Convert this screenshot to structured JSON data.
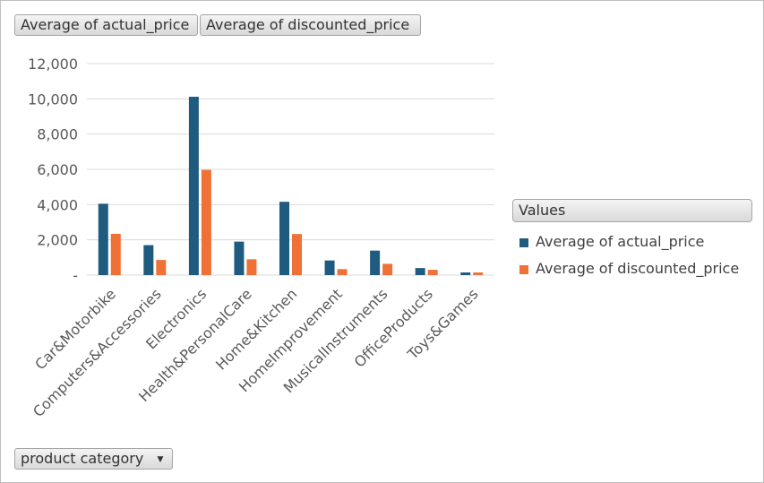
{
  "field_buttons": {
    "series1": "Average of actual_price",
    "series2": "Average of discounted_price"
  },
  "axis_field": {
    "label": "product category",
    "icon": "dropdown-arrow-icon"
  },
  "legend": {
    "title": "Values",
    "items": [
      {
        "label": "Average of actual_price",
        "color": "#1f5b7e"
      },
      {
        "label": "Average of discounted_price",
        "color": "#ef7136"
      }
    ]
  },
  "chart_data": {
    "type": "bar",
    "categories": [
      "Car&Motorbike",
      "Computers&Accessories",
      "Electronics",
      "Health&PersonalCare",
      "Home&Kitchen",
      "HomeImprovement",
      "MusicalInstruments",
      "OfficeProducts",
      "Toys&Games"
    ],
    "series": [
      {
        "name": "Average of actual_price",
        "color": "#1f5b7e",
        "values": [
          4050,
          1700,
          10120,
          1900,
          4160,
          830,
          1390,
          400,
          150
        ]
      },
      {
        "name": "Average of discounted_price",
        "color": "#ef7136",
        "values": [
          2340,
          860,
          5970,
          900,
          2330,
          340,
          640,
          300,
          150
        ]
      }
    ],
    "ylim": [
      0,
      12000
    ],
    "yticks": [
      "-",
      "2,000",
      "4,000",
      "6,000",
      "8,000",
      "10,000",
      "12,000"
    ],
    "ytick_values": [
      0,
      2000,
      4000,
      6000,
      8000,
      10000,
      12000
    ],
    "grid": true,
    "legend_position": "right"
  }
}
